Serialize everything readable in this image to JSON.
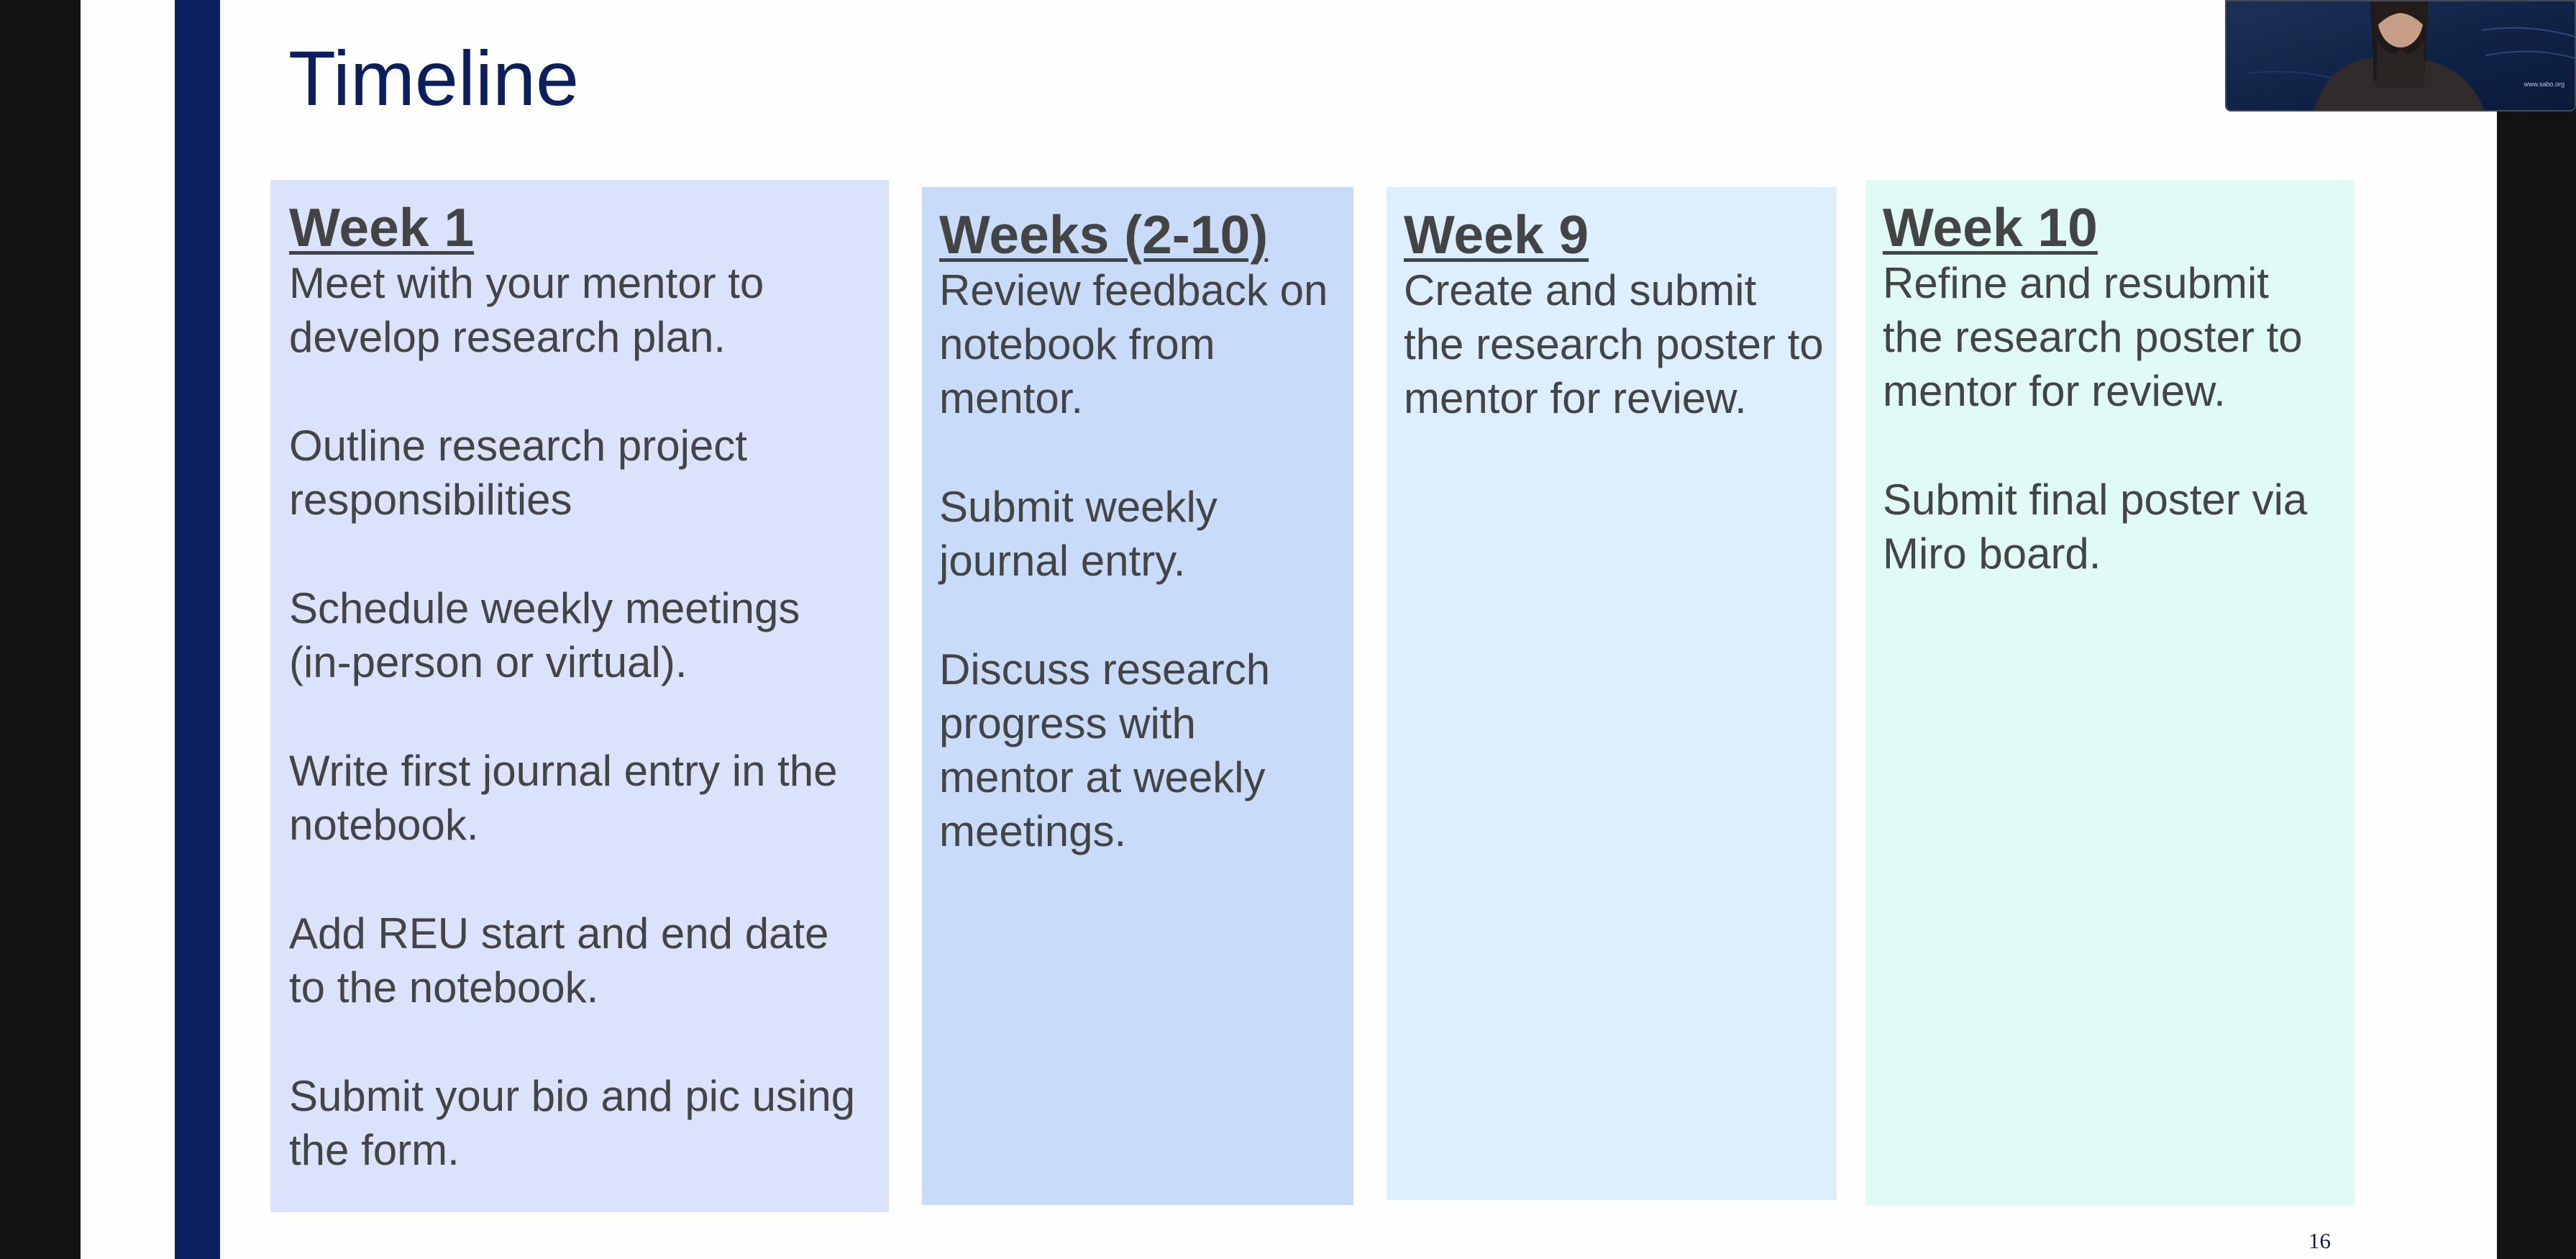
{
  "colors": {
    "accent_navy": "#0b2060",
    "title_text": "#0b1f5e",
    "body_text": "#444444",
    "col1_bg": "#dae3fb",
    "col2_bg": "#c8dcfa",
    "col3_bg": "#ddeffe",
    "col4_bg": "#e0fbf6"
  },
  "slide": {
    "title": "Timeline",
    "page_number": "16"
  },
  "columns": [
    {
      "heading": "Week 1",
      "items": [
        "Meet with your mentor to develop research plan.",
        "Outline research project responsibilities",
        "Schedule weekly meetings (in-person or virtual).",
        "Write first journal entry in the notebook.",
        "Add REU start and end date to the notebook.",
        "Submit your bio and pic using the form."
      ]
    },
    {
      "heading": "Weeks (2-10)",
      "items": [
        "Review feedback on notebook from mentor.",
        "Submit weekly journal entry.",
        "Discuss research progress with mentor at weekly meetings."
      ]
    },
    {
      "heading": "Week 9",
      "items": [
        "Create and submit the research poster to mentor for review."
      ]
    },
    {
      "heading": "Week 10",
      "items": [
        "Refine and resubmit the research poster to mentor for review.",
        "Submit final poster via Miro board."
      ]
    }
  ],
  "webcam": {
    "overlay_text": "www.sabo.org",
    "icon": "monitor-icon"
  }
}
